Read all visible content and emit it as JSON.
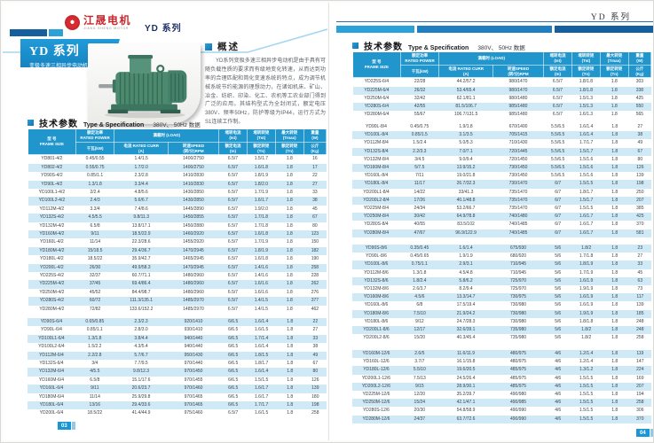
{
  "colors": {
    "accent_blue": "#1a96d4",
    "table_header_blue": "#2196cd",
    "row_stripe_blue": "#cfe9f7",
    "brand_red": "#c8282d",
    "bar_dark_blue": "#155f9e",
    "bar_light_blue": "#2ba1da"
  },
  "brand": {
    "name_cn": "江晟电机",
    "name_en": "JIANG SHENG MOTOR",
    "series_label": "YD 系列"
  },
  "left_page": {
    "title_block": {
      "title": "YD 系列",
      "subtitle": "变极多速三相异步电动机"
    },
    "overview": {
      "heading": "概述",
      "body": "YD系列变极多速三相异步电动机是由于具有可随负载性质的要求而有级地变化转速，从而达到功率的合理匹配和简化变速系统的特点，成为调节机械系统节约能源的理想动力，在诸如机床、矿山、冶金、纺织、印染、化工、农机等工农业部门得到广泛的应用。其结构型式为全封闭式，额定电压380V、频率50Hz，防护等级为IP44，运行方式为S1连续工作制。"
    },
    "spec_heading": {
      "cn": "技术参数",
      "en": "Type & Specification",
      "cond": "380V、 50Hz 数据"
    },
    "page_number": "03"
  },
  "right_page": {
    "header_label": "YD 系列",
    "spec_heading": {
      "cn": "技术参数",
      "en": "Type & Specification",
      "cond": "380V、 50Hz 数据"
    },
    "page_number": "04"
  },
  "table_header": {
    "frame": "型 号\nFRAME SIZE",
    "power_top": "额定功率\nRATED POWER",
    "power_bot": "千瓦(kW)",
    "load": "满载时 (LOAD)",
    "curr": "电流 RATED CURR\n(A)",
    "speed": "转速SPEED\n(转/分)RPM",
    "ist_top": "堵转电流\n(Ist)",
    "ist_bot": "额定电流\n(In)",
    "tst_top": "堵转转矩\n(Tst)",
    "tst_bot": "额定转矩\n(Tn)",
    "tmax_top": "最大转矩\n(Tmax)",
    "tmax_bot": "额定转矩\n(Tn)",
    "weight_top": "重量\n(W)",
    "weight_bot": "公斤\n(Kg)"
  },
  "tables": {
    "left": {
      "blocks": [
        {
          "rows": [
            [
              "YD801-4/2",
              "0.45/0.55",
              "1.4/1.5",
              "1400/2750",
              "6.5/7",
              "1.5/1.7",
              "1.8",
              "16"
            ],
            [
              "YD802-4/2",
              "0.55/0.75",
              "1.7/2.0",
              "1400/2750",
              "6.5/7",
              "1.6/1.8",
              "1.8",
              "17"
            ],
            [
              "YD90S-4/2",
              "0.85/1.1",
              "2.3/2.8",
              "1410/2830",
              "6.5/7",
              "1.8/1.9",
              "1.8",
              "22"
            ],
            [
              "YD90L-4/2",
              "1.3/1.8",
              "3.3/4.4",
              "1410/2830",
              "6.5/7",
              "1.8/2.0",
              "1.8",
              "27"
            ],
            [
              "YD100L1-4/2",
              "2/2.4",
              "4.8/5.6",
              "1430/2850",
              "6.5/7",
              "1.7/1.9",
              "1.8",
              "33"
            ],
            [
              "YD100L2-4/2",
              "2.4/3",
              "5.6/6.7",
              "1430/2850",
              "6.5/7",
              "1.6/1.7",
              "1.8",
              "38"
            ],
            [
              "YD112M-4/2",
              "3.3/4",
              "7.4/8.6",
              "1445/2890",
              "6.5/7",
              "1.9/2.0",
              "1.8",
              "45"
            ],
            [
              "YD132S-4/2",
              "4.5/5.5",
              "9.8/11.3",
              "1450/2855",
              "6.5/7",
              "1.7/1.8",
              "1.8",
              "67"
            ],
            [
              "YD132M-4/2",
              "6.5/8",
              "13.8/17.1",
              "1450/2880",
              "6.5/7",
              "1.7/1.8",
              "1.8",
              "80"
            ],
            [
              "YD160M-4/2",
              "9/11",
              "18.5/22.9",
              "1460/2920",
              "6.5/7",
              "1.6/1.8",
              "1.8",
              "123"
            ],
            [
              "YD160L-4/2",
              "11/14",
              "22.3/28.6",
              "1455/2920",
              "6.5/7",
              "1.7/1.9",
              "1.8",
              "150"
            ],
            [
              "YD180M-4/2",
              "15/18.5",
              "29.4/36.7",
              "1470/2945",
              "6.5/7",
              "1.8/1.9",
              "1.8",
              "182"
            ],
            [
              "YD180L-4/2",
              "18.5/22",
              "35.9/42.7",
              "1465/2945",
              "6.5/7",
              "1.6/1.8",
              "1.8",
              "190"
            ],
            [
              "YD200L-4/2",
              "26/30",
              "49.9/58.3",
              "1470/2945",
              "6.5/7",
              "1.4/1.6",
              "1.8",
              "258"
            ],
            [
              "YD225S-4/2",
              "32/37",
              "60.7/71.1",
              "1480/2960",
              "6.5/7",
              "1.4/1.6",
              "1.8",
              "228"
            ],
            [
              "YD225M-4/2",
              "37/45",
              "69.4/86.4",
              "1480/2960",
              "6.5/7",
              "1.6/1.6",
              "1.8",
              "262"
            ],
            [
              "YD250M-4/2",
              "45/52",
              "84.4/98.7",
              "1480/2960",
              "6.5/7",
              "1.6/1.6",
              "1.8",
              "276"
            ],
            [
              "YD280S-4/2",
              "60/72",
              "111.3/135.1",
              "1485/2970",
              "6.5/7",
              "1.4/1.5",
              "1.8",
              "377"
            ],
            [
              "YD280M-4/2",
              "72/82",
              "133.6/152.2",
              "1485/2970",
              "6.5/7",
              "1.4/1.5",
              "1.8",
              "462"
            ]
          ]
        },
        {
          "rows": [
            [
              "YD90S-6/4",
              "0.65/0.85",
              "2.3/2.3",
              "920/1410",
              "6/6.5",
              "1.6/1.4",
              "1.8",
              "22"
            ],
            [
              "YD90L-6/4",
              "0.85/1.1",
              "2.8/3.0",
              "930/1410",
              "6/6.5",
              "1.6/1.5",
              "1.8",
              "27"
            ],
            [
              "YD100L1-6/4",
              "1.3/1.8",
              "3.8/4.4",
              "940/1440",
              "6/6.5",
              "1.7/1.4",
              "1.8",
              "33"
            ],
            [
              "YD100L2-6/4",
              "1.5/2.2",
              "4.3/5.4",
              "940/1440",
              "6/6.5",
              "1.6/1.4",
              "1.8",
              "38"
            ],
            [
              "YD112M-6/4",
              "2.2/2.8",
              "5.7/6.7",
              "950/1430",
              "6/6.5",
              "1.8/1.5",
              "1.8",
              "49"
            ],
            [
              "YD132S-6/4",
              "3/4",
              "7.7/9.5",
              "970/1440",
              "6/6.5",
              "1.8/1.7",
              "1.8",
              "67"
            ],
            [
              "YD132M-6/4",
              "4/5.5",
              "9.8/12.3",
              "970/1450",
              "6/6.5",
              "1.6/1.4",
              "1.8",
              "80"
            ],
            [
              "YD160M-6/4",
              "6.5/8",
              "15.1/17.6",
              "970/1455",
              "6/6.5",
              "1.5/1.5",
              "1.8",
              "126"
            ],
            [
              "YD160L-6/4",
              "9/11",
              "20.6/23.7",
              "970/1460",
              "6/6.5",
              "1.6/1.7",
              "1.8",
              "139"
            ],
            [
              "YD180M-6/4",
              "11/14",
              "25.9/29.8",
              "970/1465",
              "6/6.5",
              "1.6/1.7",
              "1.8",
              "180"
            ],
            [
              "YD180L-6/4",
              "13/16",
              "29.4/33.6",
              "970/1465",
              "6/6.5",
              "1.7/1.7",
              "1.8",
              "198"
            ],
            [
              "YD200L-6/4",
              "18.5/22",
              "41.4/44.9",
              "975/1460",
              "6.5/7",
              "1.6/1.5",
              "1.8",
              "258"
            ]
          ]
        }
      ]
    },
    "right": {
      "blocks": [
        {
          "rows": [
            [
              "YD225S-6/4",
              "22/28",
              "44.2/57.2",
              "980/1470",
              "6.5/7",
              "1.8/1.8",
              "1.8",
              "303"
            ],
            [
              "YD225M-6/4",
              "26/32",
              "53.4/65.4",
              "980/1470",
              "6.5/7",
              "1.8/1.8",
              "1.8",
              "338"
            ],
            [
              "YD250M-6/4",
              "32/42",
              "62.1/81.1",
              "980/1480",
              "6.5/7",
              "1.5/1.3",
              "1.8",
              "425"
            ],
            [
              "YD280S-6/4",
              "42/55",
              "81.5/106.7",
              "985/1480",
              "6.5/7",
              "1.5/1.3",
              "1.8",
              "550"
            ],
            [
              "YD280M-6/4",
              "55/67",
              "106.7/131.5",
              "985/1480",
              "6.5/7",
              "1.6/1.3",
              "1.8",
              "565"
            ]
          ]
        },
        {
          "rows": [
            [
              "YD90L-8/4",
              "0.45/0.75",
              "1.9/1.8",
              "670/1400",
              "5.5/6.5",
              "1.6/1.4",
              "1.8",
              "27"
            ],
            [
              "YD100L-8/4",
              "0.85/1.5",
              "3.1/3.5",
              "705/1415",
              "5.5/6.5",
              "1.6/1.4",
              "1.8",
              "38"
            ],
            [
              "YD112M-8/4",
              "1.5/2.4",
              "5.0/5.3",
              "710/1430",
              "5.5/6.5",
              "1.7/1.7",
              "1.8",
              "49"
            ],
            [
              "YD132S-8/4",
              "2.2/3.3",
              "7.0/7.1",
              "720/1445",
              "5.5/6.5",
              "1.5/1.7",
              "1.8",
              "67"
            ],
            [
              "YD132M-8/4",
              "3/4.5",
              "9.0/9.4",
              "720/1450",
              "5.5/6.5",
              "1.5/1.6",
              "1.8",
              "80"
            ],
            [
              "YD160M-8/4",
              "5/7.5",
              "13.9/15.2",
              "730/1450",
              "5.5/6.5",
              "1.5/1.6",
              "1.8",
              "126"
            ],
            [
              "YD160L-8/4",
              "7/11",
              "19.0/21.8",
              "730/1450",
              "5.5/6.5",
              "1.5/1.6",
              "1.8",
              "139"
            ],
            [
              "YD180L-8/4",
              "11/17",
              "26.7/32.3",
              "730/1470",
              "6/7",
              "1.5/1.5",
              "1.8",
              "198"
            ],
            [
              "YD200L1-8/4",
              "14/22",
              "33/41.3",
              "735/1470",
              "6/7",
              "1.8/1.7",
              "1.8",
              "250"
            ],
            [
              "YD200L2-8/4",
              "17/26",
              "40.1/48.8",
              "735/1470",
              "6/7",
              "1.5/1.7",
              "1.8",
              "207"
            ],
            [
              "YD225M-8/4",
              "24/34",
              "53.2/66.7",
              "735/1470",
              "6/7",
              "1.5/1.5",
              "1.8",
              "385"
            ],
            [
              "YD250M-8/4",
              "30/42",
              "64.9/78.8",
              "740/1480",
              "6/7",
              "1.6/1.7",
              "1.8",
              "425"
            ],
            [
              "YD280S-8/4",
              "40/55",
              "83.5/102",
              "740/1485",
              "6/7",
              "1.6/1.7",
              "1.8",
              "370"
            ],
            [
              "YD280M-8/4",
              "47/67",
              "96.9/122.9",
              "740/1485",
              "6/7",
              "1.6/1.7",
              "1.8",
              "581"
            ]
          ]
        },
        {
          "rows": [
            [
              "YD90S-8/6",
              "0.35/0.45",
              "1.6/1.4",
              "675/930",
              "5/6",
              "1.8/2",
              "1.8",
              "23"
            ],
            [
              "YD90L-8/6",
              "0.45/0.65",
              "1.9/1.9",
              "680/920",
              "5/6",
              "1.7/1.8",
              "1.8",
              "27"
            ],
            [
              "YD100L-8/6",
              "0.75/1.1",
              "2.9/3.1",
              "710/945",
              "5/6",
              "1.8/1.9",
              "1.8",
              "33"
            ],
            [
              "YD112M-8/6",
              "1.3/1.8",
              "4.5/4.8",
              "710/945",
              "5/6",
              "1.7/1.9",
              "1.8",
              "45"
            ],
            [
              "YD132S-8/6",
              "1.8/2.4",
              "5.8/6.2",
              "725/970",
              "5/6",
              "1.6/1.9",
              "1.8",
              "63"
            ],
            [
              "YD132M-8/6",
              "2.6/3.7",
              "8.2/9.4",
              "725/970",
              "5/6",
              "1.9/1.9",
              "1.8",
              "73"
            ],
            [
              "YD160M-8/6",
              "4.5/6",
              "13.3/14.7",
              "730/975",
              "5/6",
              "1.6/1.9",
              "1.8",
              "117"
            ],
            [
              "YD160L-8/6",
              "6/8",
              "17.5/19.4",
              "730/980",
              "5/6",
              "1.6/1.9",
              "1.8",
              "139"
            ],
            [
              "YD180M-8/6",
              "7.5/10",
              "21.9/24.2",
              "730/980",
              "5/6",
              "1.9/1.9",
              "1.8",
              "185"
            ],
            [
              "YD180L-8/6",
              "9/12",
              "24.7/28.3",
              "730/980",
              "5/6",
              "1.8/1.8",
              "1.8",
              "248"
            ],
            [
              "YD200L1-8/6",
              "12/17",
              "32.6/39.1",
              "735/980",
              "5/6",
              "1.8/2",
              "1.8",
              "248"
            ],
            [
              "YD200L2-8/6",
              "15/20",
              "40.3/45.4",
              "735/980",
              "5/6",
              "1.8/2",
              "1.8",
              "258"
            ]
          ]
        },
        {
          "rows": [
            [
              "YD160M-12/6",
              "2.6/5",
              "11.6/11.9",
              "480/975",
              "4/6",
              "1.2/1.4",
              "1.8",
              "119"
            ],
            [
              "YD160L-12/6",
              "3.7/7",
              "16.1/15.8",
              "480/975",
              "4/6",
              "1.2/1.4",
              "1.8",
              "147"
            ],
            [
              "YD180L-12/6",
              "5.5/10",
              "19.6/20.5",
              "485/975",
              "4/6",
              "1.3/1.2",
              "1.8",
              "224"
            ],
            [
              "YD200L1-12/6",
              "7.5/13",
              "24.5/26.4",
              "485/975",
              "4/6",
              "1.5/1.5",
              "1.8",
              "169"
            ],
            [
              "YD200L2-12/6",
              "9/15",
              "28.9/30.1",
              "485/975",
              "4/6",
              "1.5/1.5",
              "1.8",
              "207"
            ],
            [
              "YD225M-12/6",
              "12/20",
              "35.2/39.7",
              "490/980",
              "4/6",
              "1.5/1.5",
              "1.8",
              "194"
            ],
            [
              "YD250M-12/6",
              "15/24",
              "42.1/47.1",
              "490/985",
              "4/6",
              "1.5/1.5",
              "1.8",
              "258"
            ],
            [
              "YD280S-12/6",
              "20/30",
              "54.8/58.9",
              "490/990",
              "4/6",
              "1.5/1.5",
              "1.8",
              "306"
            ],
            [
              "YD280M-12/6",
              "24/37",
              "63.7/72.6",
              "490/990",
              "4/6",
              "1.5/1.5",
              "1.8",
              "370"
            ]
          ]
        }
      ]
    }
  }
}
